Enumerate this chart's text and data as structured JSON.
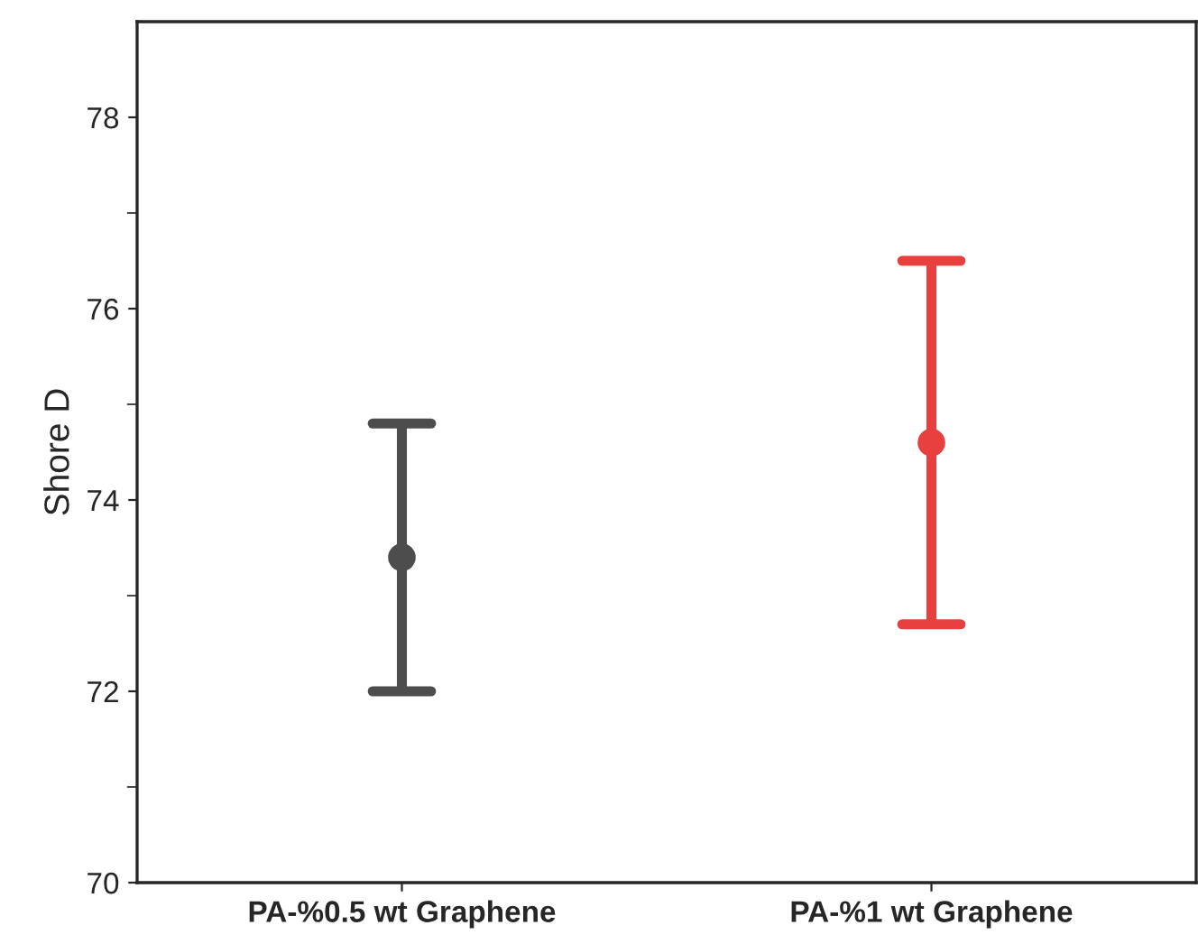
{
  "chart_data": {
    "type": "scatter",
    "ylabel": "Shore D",
    "categories": [
      "PA-%0.5 wt Graphene",
      "PA-%1 wt Graphene"
    ],
    "values": [
      73.4,
      74.6
    ],
    "errors": [
      [
        72.0,
        74.8
      ],
      [
        72.7,
        76.5
      ]
    ],
    "colors": [
      "#4d4d4d",
      "#e8403f"
    ],
    "marker": "circle",
    "ylim": [
      70,
      79
    ],
    "yticks": [
      70,
      72,
      74,
      76,
      78
    ],
    "grid": false
  }
}
